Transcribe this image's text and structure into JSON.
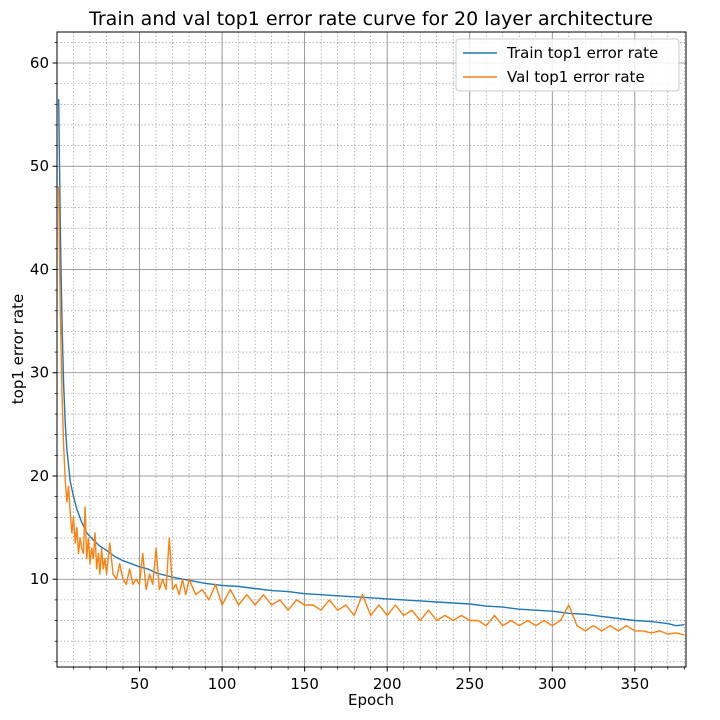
{
  "chart_data": {
    "type": "line",
    "title": "Train and val top1 error rate curve for 20 layer architecture",
    "xlabel": "Epoch",
    "ylabel": "top1 error rate",
    "xlim": [
      0,
      381
    ],
    "ylim": [
      1.5,
      63
    ],
    "x_major_ticks": [
      50,
      100,
      150,
      200,
      250,
      300,
      350
    ],
    "x_tick_labels": [
      "50",
      "100",
      "150",
      "200",
      "250",
      "300",
      "350"
    ],
    "y_major_ticks": [
      10,
      20,
      30,
      40,
      50,
      60
    ],
    "y_tick_labels": [
      "10",
      "20",
      "30",
      "40",
      "50",
      "60"
    ],
    "x_minor_step": 10,
    "y_minor_step": 2,
    "grid": true,
    "legend_position": "top-right",
    "series": [
      {
        "name": "Train top1 error rate",
        "color": "#1f77b4",
        "x": [
          1,
          2,
          3,
          4,
          5,
          6,
          8,
          10,
          12,
          15,
          18,
          22,
          26,
          30,
          35,
          40,
          45,
          50,
          55,
          60,
          70,
          80,
          90,
          100,
          110,
          120,
          130,
          140,
          150,
          160,
          170,
          180,
          190,
          200,
          210,
          220,
          230,
          240,
          250,
          260,
          270,
          280,
          290,
          300,
          310,
          320,
          330,
          340,
          350,
          360,
          370,
          375,
          380
        ],
        "y": [
          56.5,
          44,
          35,
          29,
          25,
          22.5,
          19.5,
          18,
          16.8,
          15.5,
          14.5,
          13.8,
          13.2,
          12.8,
          12.2,
          11.8,
          11.5,
          11.2,
          11.0,
          10.6,
          10.2,
          9.9,
          9.6,
          9.4,
          9.3,
          9.1,
          8.9,
          8.8,
          8.6,
          8.5,
          8.4,
          8.3,
          8.2,
          8.1,
          8.0,
          7.9,
          7.8,
          7.7,
          7.6,
          7.4,
          7.3,
          7.1,
          7.0,
          6.9,
          6.7,
          6.6,
          6.4,
          6.2,
          6.0,
          5.9,
          5.7,
          5.5,
          5.6
        ]
      },
      {
        "name": "Val top1 error rate",
        "color": "#ff7f0e",
        "x": [
          1,
          2,
          3,
          4,
          5,
          6,
          7,
          8,
          9,
          10,
          11,
          12,
          13,
          14,
          15,
          16,
          17,
          18,
          19,
          20,
          21,
          22,
          23,
          24,
          25,
          26,
          27,
          28,
          29,
          30,
          32,
          34,
          36,
          38,
          40,
          42,
          44,
          46,
          48,
          50,
          52,
          54,
          56,
          58,
          60,
          62,
          64,
          66,
          68,
          70,
          72,
          74,
          76,
          78,
          80,
          84,
          88,
          92,
          96,
          100,
          105,
          110,
          115,
          120,
          125,
          130,
          135,
          140,
          145,
          150,
          155,
          160,
          165,
          170,
          175,
          180,
          185,
          190,
          195,
          200,
          205,
          210,
          215,
          220,
          225,
          230,
          235,
          240,
          245,
          250,
          255,
          260,
          265,
          270,
          275,
          280,
          285,
          290,
          295,
          300,
          305,
          310,
          315,
          320,
          325,
          330,
          335,
          340,
          345,
          350,
          355,
          360,
          365,
          370,
          375,
          380
        ],
        "y": [
          48,
          36,
          28,
          23,
          19.5,
          17.5,
          19,
          16.5,
          14.5,
          16,
          13.5,
          15,
          12.5,
          14,
          13,
          12.5,
          17,
          12,
          14,
          11.5,
          13,
          12,
          14.5,
          11,
          12.5,
          10.5,
          13,
          11,
          12,
          10.5,
          13.5,
          10.5,
          10,
          11.5,
          10,
          9.5,
          11,
          9.5,
          10,
          9.5,
          12.5,
          9,
          10.5,
          9.5,
          13,
          9,
          10,
          9,
          14,
          9,
          9.5,
          8.5,
          10,
          8.5,
          10,
          8.5,
          9,
          8,
          9.5,
          7.5,
          9,
          7.5,
          8.5,
          7.5,
          8.5,
          7.5,
          8,
          7,
          8,
          7.5,
          7.5,
          7,
          8,
          7,
          7.5,
          6.5,
          8.5,
          6.5,
          7.5,
          6.5,
          7.5,
          6.5,
          7,
          6,
          7,
          6,
          6.5,
          6,
          6.5,
          6,
          6,
          5.5,
          6.5,
          5.5,
          6,
          5.5,
          6,
          5.5,
          6,
          5.5,
          6,
          7.5,
          5.5,
          5,
          5.5,
          5,
          5.5,
          5,
          5.5,
          5,
          5,
          4.8,
          5,
          4.7,
          4.8,
          4.6
        ]
      }
    ]
  }
}
